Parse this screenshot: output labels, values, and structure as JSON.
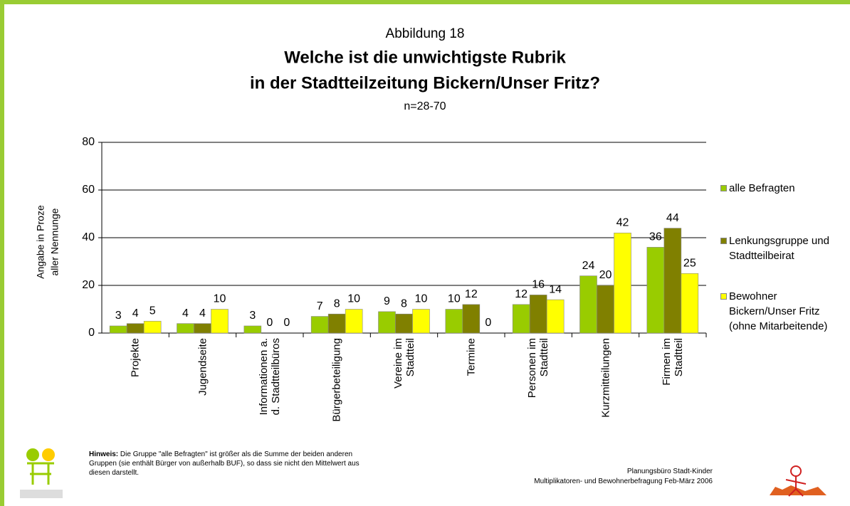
{
  "chart_data": {
    "type": "bar",
    "subtitle_top": "Abbildung 18",
    "title": [
      "Welche ist die unwichtigste Rubrik",
      "in der Stadtteilzeitung Bickern/Unser Fritz?"
    ],
    "subtitle": "n=28-70",
    "y_label": [
      "Angabe in Proze",
      "aller Nennunge"
    ],
    "categories": [
      [
        "Projekte"
      ],
      [
        "Jugendseite"
      ],
      [
        "Informationen a.",
        "d. Stadtteilbüros"
      ],
      [
        "Bürgerbeteiligung"
      ],
      [
        "Vereine im",
        "Stadtteil"
      ],
      [
        "Termine"
      ],
      [
        "Personen im",
        "Stadtteil"
      ],
      [
        "Kurzmitteilungen"
      ],
      [
        "Firmen im",
        "Stadtteil"
      ]
    ],
    "series": [
      {
        "name": "alle Befragten",
        "color": "#99cc00",
        "values": [
          3,
          4,
          3,
          7,
          9,
          10,
          12,
          24,
          36
        ]
      },
      {
        "name": "Lenkungsgruppe und Stadtteilbeirat",
        "color": "#808000",
        "values": [
          4,
          4,
          0,
          8,
          8,
          12,
          16,
          20,
          44
        ]
      },
      {
        "name": "Bewohner Bickern/Unser Fritz (ohne Mitarbeitende)",
        "color": "#ffff00",
        "values": [
          5,
          10,
          0,
          10,
          10,
          0,
          14,
          42,
          25
        ]
      }
    ],
    "ylim": [
      0,
      80
    ],
    "yticks": [
      0,
      20,
      40,
      60,
      80
    ],
    "grid": true,
    "legend": "right",
    "note_label": "Hinweis:",
    "note": "Die Gruppe \"alle Befragten\" ist größer als die Summe der beiden anderen Gruppen (sie enthält Bürger von außerhalb BUF), so dass sie nicht den Mittelwert aus diesen darstellt.",
    "credit": [
      "Planungsbüro Stadt-Kinder",
      "Multiplikatoren- und Bewohnerbefragung Feb-März 2006"
    ]
  }
}
